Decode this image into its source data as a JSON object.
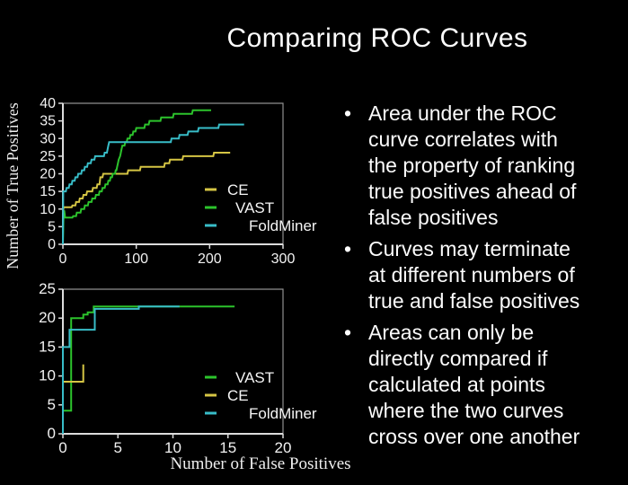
{
  "slide": {
    "title": "Comparing ROC Curves",
    "background_color": "#000000",
    "text_color": "#ffffff"
  },
  "figure": {
    "ylabel": "Number of True Positives",
    "xlabel": "Number of False Positives"
  },
  "bullets": [
    {
      "lines": [
        "Area under the ROC",
        "curve correlates with",
        "the property of ranking",
        "true positives ahead of",
        "false positives"
      ]
    },
    {
      "lines": [
        "Curves may terminate",
        "at different numbers of",
        "true and false positives"
      ]
    },
    {
      "lines": [
        "Areas can only be",
        "directly compared if",
        "calculated at points",
        "where the two curves",
        "cross over one another"
      ]
    }
  ],
  "chart_data": [
    {
      "type": "line",
      "title": "",
      "xlabel": "",
      "ylabel": "Number of True Positives",
      "xlim": [
        0,
        300
      ],
      "ylim": [
        0,
        40
      ],
      "xticks": [
        0,
        100,
        200,
        300
      ],
      "yticks": [
        0,
        5,
        10,
        15,
        20,
        25,
        30,
        35,
        40
      ],
      "grid": false,
      "legend_position": "inside-right",
      "axis_color": "#dcdcdc",
      "box_color": "#8f8f8f",
      "tick_label_color": "#f2f2f2",
      "legend": [
        {
          "label": "CE",
          "color": "#d5c544",
          "indent": 25
        },
        {
          "label": "VAST",
          "color": "#2cc32c",
          "indent": 34
        },
        {
          "label": "FoldMiner",
          "color": "#38bdc8",
          "indent": 49
        }
      ],
      "series": [
        {
          "name": "CE",
          "color": "#d5c544",
          "points": [
            [
              0,
              9
            ],
            [
              1,
              10.5
            ],
            [
              12,
              10.5
            ],
            [
              13,
              11
            ],
            [
              17,
              11
            ],
            [
              18,
              12
            ],
            [
              22,
              12
            ],
            [
              23,
              13
            ],
            [
              27,
              13
            ],
            [
              28,
              14
            ],
            [
              32,
              14
            ],
            [
              33,
              15
            ],
            [
              40,
              15
            ],
            [
              41,
              16
            ],
            [
              46,
              16
            ],
            [
              47,
              17
            ],
            [
              50,
              17
            ],
            [
              51,
              19
            ],
            [
              54,
              19
            ],
            [
              55,
              20
            ],
            [
              88,
              20
            ],
            [
              89,
              21
            ],
            [
              105,
              21
            ],
            [
              106,
              22
            ],
            [
              138,
              22
            ],
            [
              139,
              23
            ],
            [
              145,
              23
            ],
            [
              146,
              24
            ],
            [
              163,
              24
            ],
            [
              164,
              25
            ],
            [
              205,
              25
            ],
            [
              206,
              26
            ],
            [
              228,
              26
            ]
          ]
        },
        {
          "name": "VAST",
          "color": "#2cc32c",
          "points": [
            [
              0,
              0
            ],
            [
              1,
              9.4
            ],
            [
              2,
              9.4
            ],
            [
              3,
              7.6
            ],
            [
              13,
              7.6
            ],
            [
              14,
              8
            ],
            [
              18,
              8
            ],
            [
              19,
              9
            ],
            [
              24,
              9
            ],
            [
              25,
              10
            ],
            [
              29,
              10
            ],
            [
              30,
              11
            ],
            [
              34,
              11
            ],
            [
              35,
              12
            ],
            [
              39,
              12
            ],
            [
              40,
              13
            ],
            [
              44,
              13
            ],
            [
              45,
              14
            ],
            [
              49,
              14
            ],
            [
              50,
              15
            ],
            [
              53,
              15
            ],
            [
              54,
              16
            ],
            [
              57,
              16
            ],
            [
              58,
              17
            ],
            [
              61,
              17
            ],
            [
              62,
              18
            ],
            [
              64,
              18
            ],
            [
              65,
              19
            ],
            [
              67,
              19
            ],
            [
              68,
              20
            ],
            [
              71,
              20
            ],
            [
              72,
              21
            ],
            [
              73,
              21
            ],
            [
              74,
              22
            ],
            [
              75,
              23
            ],
            [
              76,
              24
            ],
            [
              78,
              25
            ],
            [
              79,
              26
            ],
            [
              80,
              27
            ],
            [
              81,
              28
            ],
            [
              84,
              28
            ],
            [
              85,
              29
            ],
            [
              87,
              29
            ],
            [
              88,
              30
            ],
            [
              91,
              30
            ],
            [
              92,
              31
            ],
            [
              95,
              31
            ],
            [
              96,
              32
            ],
            [
              99,
              32
            ],
            [
              100,
              33
            ],
            [
              111,
              33
            ],
            [
              112,
              34
            ],
            [
              117,
              34
            ],
            [
              118,
              35
            ],
            [
              133,
              35
            ],
            [
              134,
              36
            ],
            [
              150,
              36
            ],
            [
              151,
              37
            ],
            [
              176,
              37
            ],
            [
              177,
              38
            ],
            [
              202,
              38
            ]
          ]
        },
        {
          "name": "FoldMiner",
          "color": "#38bdc8",
          "points": [
            [
              0,
              0
            ],
            [
              0.5,
              15
            ],
            [
              4,
              15
            ],
            [
              5,
              16
            ],
            [
              8,
              16
            ],
            [
              9,
              17
            ],
            [
              12,
              17
            ],
            [
              13,
              18
            ],
            [
              16,
              18
            ],
            [
              17,
              19
            ],
            [
              20,
              19
            ],
            [
              21,
              20
            ],
            [
              25,
              20
            ],
            [
              26,
              21
            ],
            [
              29,
              21
            ],
            [
              30,
              22
            ],
            [
              33,
              22
            ],
            [
              34,
              23
            ],
            [
              38,
              23
            ],
            [
              39,
              24
            ],
            [
              43,
              24
            ],
            [
              44,
              25
            ],
            [
              56,
              25
            ],
            [
              57,
              26
            ],
            [
              60,
              26
            ],
            [
              61,
              27
            ],
            [
              62,
              28
            ],
            [
              63,
              29
            ],
            [
              147,
              29
            ],
            [
              148,
              30
            ],
            [
              158,
              30
            ],
            [
              159,
              31
            ],
            [
              170,
              31
            ],
            [
              171,
              32
            ],
            [
              184,
              32
            ],
            [
              185,
              33
            ],
            [
              212,
              33
            ],
            [
              213,
              34
            ],
            [
              247,
              34
            ]
          ]
        }
      ]
    },
    {
      "type": "line",
      "title": "",
      "xlabel": "Number of False Positives",
      "ylabel": "Number of True Positives",
      "xlim": [
        0,
        20
      ],
      "ylim": [
        0,
        25
      ],
      "xticks": [
        0,
        5,
        10,
        15,
        20
      ],
      "yticks": [
        0,
        5,
        10,
        15,
        20,
        25
      ],
      "grid": false,
      "legend_position": "inside-right",
      "axis_color": "#dcdcdc",
      "box_color": "#8f8f8f",
      "tick_label_color": "#f2f2f2",
      "legend": [
        {
          "label": "VAST",
          "color": "#2cc32c",
          "indent": 34
        },
        {
          "label": "CE",
          "color": "#d5c544",
          "indent": 25
        },
        {
          "label": "FoldMiner",
          "color": "#38bdc8",
          "indent": 49
        }
      ],
      "series": [
        {
          "name": "VAST",
          "color": "#2cc32c",
          "points": [
            [
              0,
              4
            ],
            [
              0.75,
              4
            ],
            [
              0.75,
              20
            ],
            [
              1.85,
              20
            ],
            [
              1.85,
              20.6
            ],
            [
              2.25,
              20.6
            ],
            [
              2.25,
              21
            ],
            [
              2.8,
              21
            ],
            [
              2.8,
              22
            ],
            [
              15.6,
              22
            ]
          ]
        },
        {
          "name": "CE",
          "color": "#d5c544",
          "points": [
            [
              0,
              9
            ],
            [
              1.85,
              9
            ],
            [
              1.85,
              12
            ]
          ]
        },
        {
          "name": "FoldMiner",
          "color": "#38bdc8",
          "points": [
            [
              0,
              0
            ],
            [
              0,
              15
            ],
            [
              0.6,
              15
            ],
            [
              0.6,
              18
            ],
            [
              2.9,
              18
            ],
            [
              2.9,
              21.6
            ],
            [
              6.9,
              21.6
            ],
            [
              6.9,
              22
            ],
            [
              10.6,
              22
            ]
          ]
        }
      ]
    }
  ]
}
